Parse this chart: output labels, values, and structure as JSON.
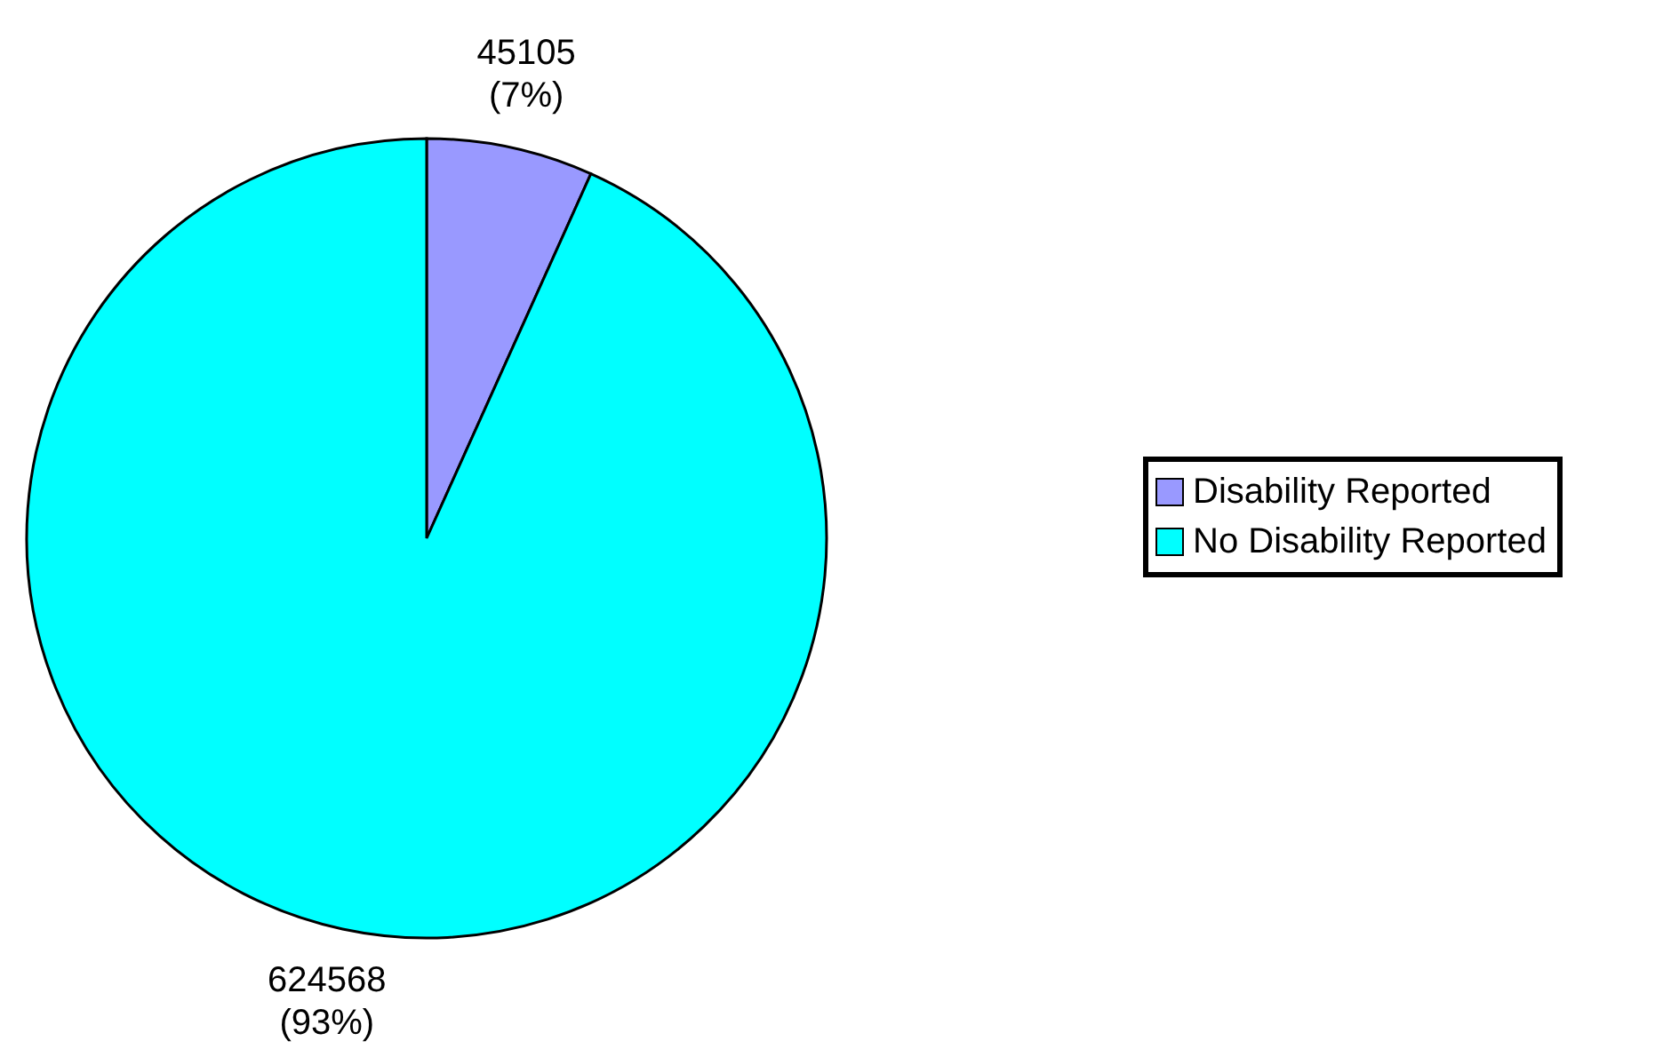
{
  "chart_data": {
    "type": "pie",
    "categories": [
      "Disability Reported",
      "No Disability Reported"
    ],
    "values": [
      45105,
      624568
    ],
    "colors": [
      "#9999ff",
      "#00ffff"
    ],
    "value_labels": [
      "45105 (7%)",
      "624568 (93%)"
    ],
    "legend": "right"
  }
}
